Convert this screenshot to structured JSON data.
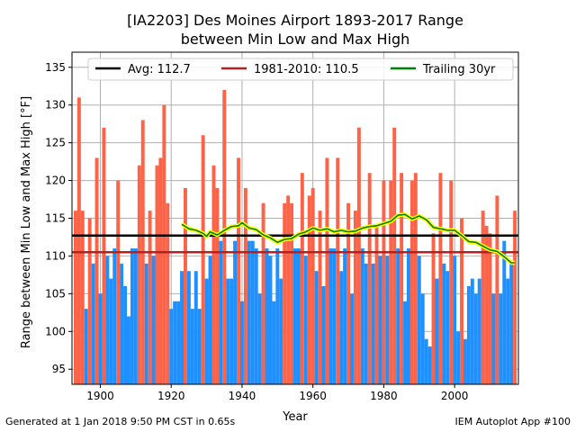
{
  "colors": {
    "above": "#ff6347",
    "below": "#1e90ff",
    "avg_line": "#000000",
    "climo_line": "#b22222",
    "trail_outer": "#ffff00",
    "trail_inner": "#008000",
    "grid": "#b0b0b0"
  },
  "footer": {
    "left": "Generated at 1 Jan 2018 9:50 PM CST in 0.65s",
    "right": "IEM Autoplot App #100"
  },
  "chart_data": {
    "type": "bar",
    "title": "[IA2203] Des Moines Airport 1893-2017 Range",
    "subtitle": "between Min Low and Max High",
    "xlabel": "Year",
    "ylabel": "Range between Min Low and Max High [°F]",
    "xlim": [
      1892,
      2018
    ],
    "ylim": [
      93,
      137
    ],
    "xticks": [
      1900,
      1920,
      1940,
      1960,
      1980,
      2000
    ],
    "yticks": [
      95,
      100,
      105,
      110,
      115,
      120,
      125,
      130,
      135
    ],
    "grid": true,
    "legend_position": "top",
    "x": [
      1893,
      1894,
      1895,
      1896,
      1897,
      1898,
      1899,
      1900,
      1901,
      1902,
      1903,
      1904,
      1905,
      1906,
      1907,
      1908,
      1909,
      1910,
      1911,
      1912,
      1913,
      1914,
      1915,
      1916,
      1917,
      1918,
      1919,
      1920,
      1921,
      1922,
      1923,
      1924,
      1925,
      1926,
      1927,
      1928,
      1929,
      1930,
      1931,
      1932,
      1933,
      1934,
      1935,
      1936,
      1937,
      1938,
      1939,
      1940,
      1941,
      1942,
      1943,
      1944,
      1945,
      1946,
      1947,
      1948,
      1949,
      1950,
      1951,
      1952,
      1953,
      1954,
      1955,
      1956,
      1957,
      1958,
      1959,
      1960,
      1961,
      1962,
      1963,
      1964,
      1965,
      1966,
      1967,
      1968,
      1969,
      1970,
      1971,
      1972,
      1973,
      1974,
      1975,
      1976,
      1977,
      1978,
      1979,
      1980,
      1981,
      1982,
      1983,
      1984,
      1985,
      1986,
      1987,
      1988,
      1989,
      1990,
      1991,
      1992,
      1993,
      1994,
      1995,
      1996,
      1997,
      1998,
      1999,
      2000,
      2001,
      2002,
      2003,
      2004,
      2005,
      2006,
      2007,
      2008,
      2009,
      2010,
      2011,
      2012,
      2013,
      2014,
      2015,
      2016,
      2017
    ],
    "values": [
      116,
      131,
      116,
      103,
      115,
      109,
      123,
      105,
      127,
      110,
      107,
      111,
      120,
      109,
      106,
      102,
      111,
      111,
      122,
      128,
      109,
      116,
      110,
      122,
      123,
      130,
      117,
      103,
      104,
      104,
      108,
      119,
      108,
      103,
      108,
      103,
      126,
      107,
      110,
      122,
      119,
      112,
      132,
      107,
      107,
      112,
      123,
      104,
      119,
      112,
      112,
      111,
      105,
      117,
      111,
      110,
      104,
      111,
      107,
      117,
      118,
      117,
      111,
      111,
      121,
      110,
      118,
      119,
      108,
      116,
      106,
      123,
      111,
      111,
      123,
      108,
      111,
      117,
      105,
      116,
      127,
      111,
      109,
      121,
      109,
      114,
      110,
      120,
      110,
      120,
      127,
      111,
      121,
      104,
      111,
      120,
      121,
      110,
      105,
      99,
      98,
      113,
      107,
      121,
      109,
      108,
      120,
      110,
      100,
      115,
      99,
      106,
      107,
      105,
      107,
      116,
      114,
      113,
      105,
      118,
      105,
      112,
      107,
      109,
      116
    ],
    "reference_lines": [
      {
        "name": "Avg: 112.7",
        "value": 112.7
      },
      {
        "name": "1981-2010: 110.5",
        "value": 110.5
      }
    ],
    "trailing_series": {
      "name": "Trailing 30yr",
      "x": [
        1923,
        1925,
        1927,
        1929,
        1930,
        1931,
        1933,
        1935,
        1937,
        1939,
        1940,
        1942,
        1944,
        1946,
        1948,
        1950,
        1952,
        1954,
        1956,
        1958,
        1960,
        1962,
        1964,
        1966,
        1968,
        1970,
        1972,
        1974,
        1976,
        1978,
        1980,
        1982,
        1984,
        1986,
        1988,
        1990,
        1992,
        1994,
        1996,
        1998,
        2000,
        2002,
        2004,
        2006,
        2008,
        2010,
        2012,
        2014,
        2016,
        2017
      ],
      "values": [
        114.2,
        113.6,
        113.4,
        113.0,
        112.6,
        113.2,
        112.8,
        113.4,
        113.9,
        114.0,
        114.4,
        113.7,
        113.5,
        112.8,
        112.4,
        111.8,
        112.2,
        112.3,
        112.9,
        113.2,
        113.7,
        113.4,
        113.6,
        113.2,
        113.4,
        113.2,
        113.3,
        113.7,
        113.9,
        114.0,
        114.3,
        114.6,
        115.4,
        115.5,
        114.9,
        115.3,
        114.8,
        113.8,
        113.6,
        113.4,
        113.4,
        112.7,
        111.9,
        111.8,
        111.3,
        110.8,
        110.6,
        109.9,
        109.1,
        109.1
      ]
    }
  }
}
